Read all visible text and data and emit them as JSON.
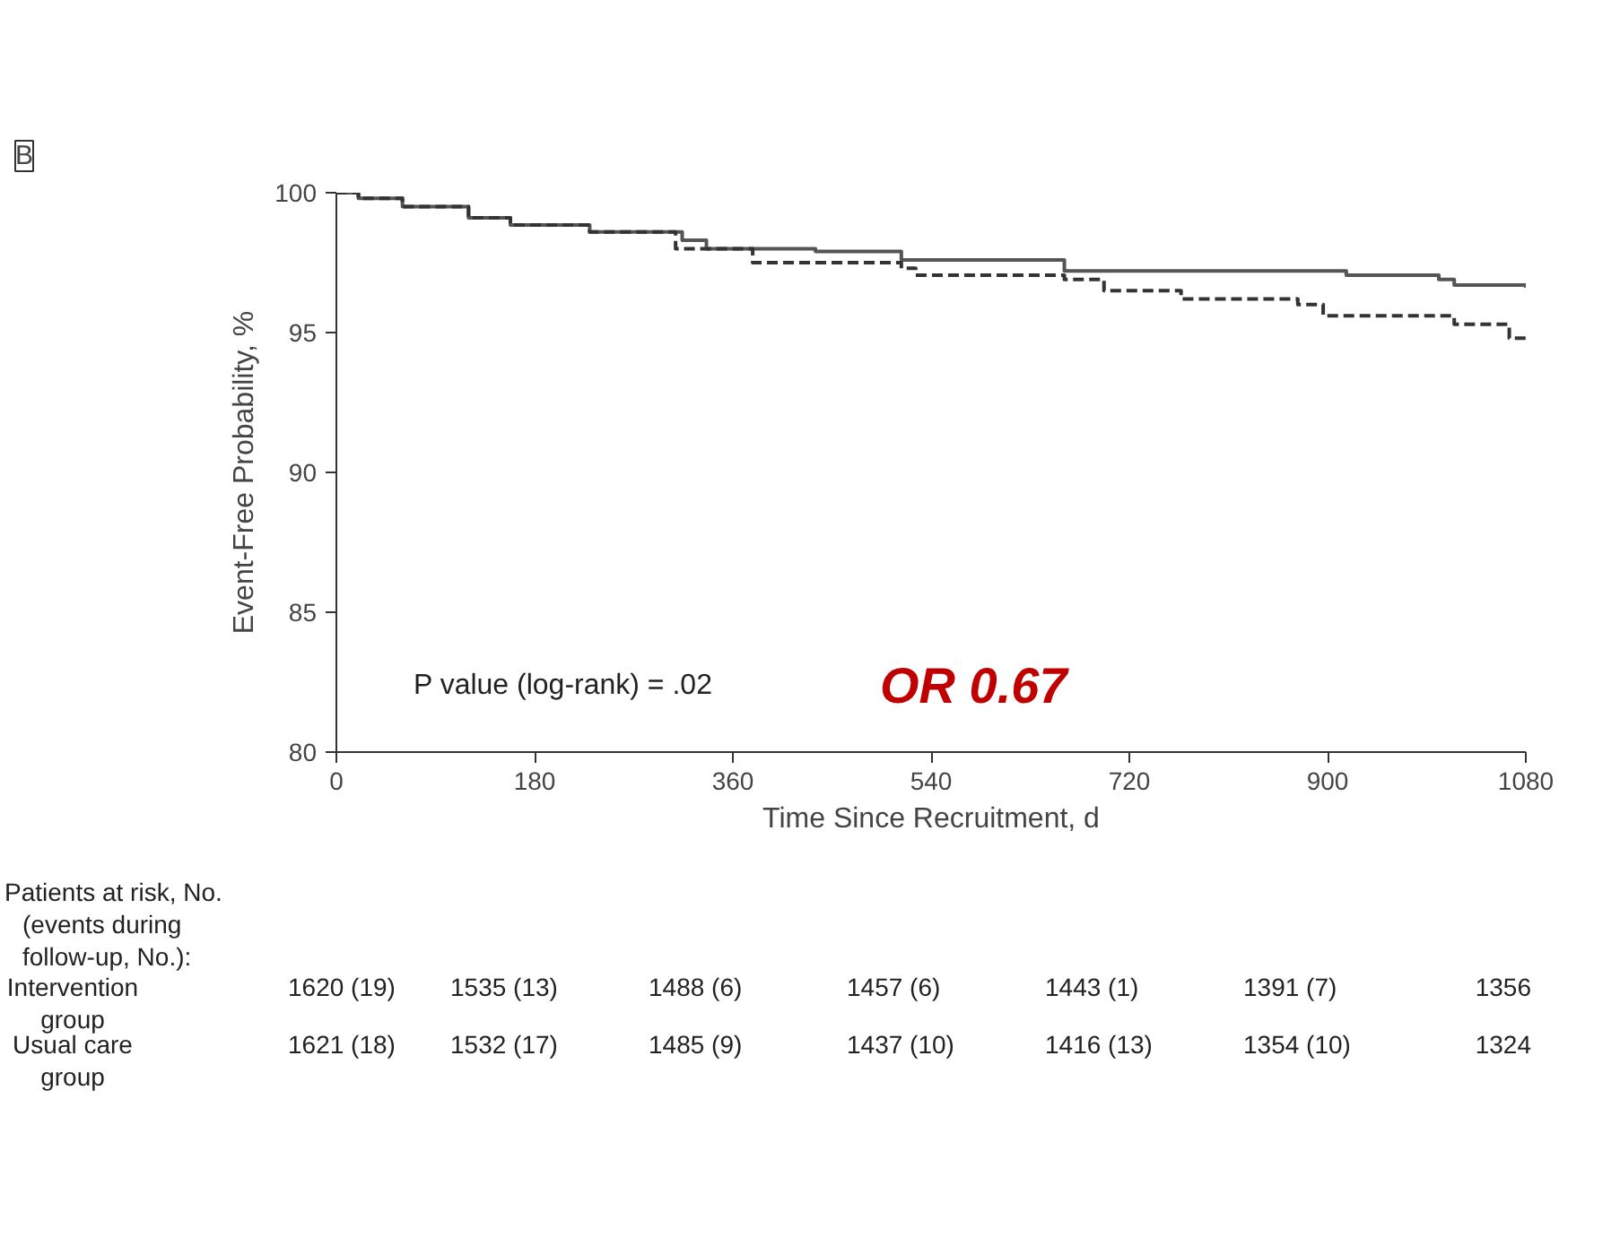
{
  "chart_data": {
    "type": "step",
    "title": "B",
    "xlabel": "Time Since Recruitment, d",
    "ylabel": "Event-Free Probability, %",
    "xlim": [
      0,
      1080
    ],
    "xticks": [
      0,
      180,
      360,
      540,
      720,
      900,
      1080
    ],
    "ylim": [
      80,
      100
    ],
    "yticks": [
      80,
      85,
      90,
      95,
      100
    ],
    "grid": false,
    "series": [
      {
        "color": "#555555",
        "line_style": "solid",
        "x": [
          0,
          20,
          60,
          120,
          158,
          230,
          314,
          336,
          435,
          513,
          661,
          917,
          1001,
          1015,
          1080
        ],
        "values": [
          100,
          99.8,
          99.5,
          99.1,
          98.85,
          98.6,
          98.3,
          98.0,
          97.9,
          97.6,
          97.2,
          97.05,
          96.9,
          96.7,
          96.6
        ]
      },
      {
        "color": "#333333",
        "line_style": "dashed",
        "x": [
          0,
          20,
          60,
          120,
          158,
          230,
          308,
          378,
          513,
          526,
          661,
          697,
          767,
          873,
          896,
          1015,
          1065,
          1080
        ],
        "values": [
          100,
          99.8,
          99.5,
          99.1,
          98.85,
          98.6,
          98.0,
          97.5,
          97.3,
          97.05,
          96.9,
          96.5,
          96.2,
          96.0,
          95.6,
          95.3,
          94.8,
          94.8
        ]
      }
    ],
    "annotations": [
      "P value (log-rank) = .02",
      "OR 0.67",
      "Patients at risk, No.",
      "(events during",
      "follow-up, No.):",
      "Intervention group",
      "1620 (19)",
      "1535 (13)",
      "1488 (6)",
      "1457 (6)",
      "1443 (1)",
      "1391 (7)",
      "1356",
      "Usual care group",
      "1621 (18)",
      "1532 (17)",
      "1485 (9)",
      "1437 (10)",
      "1416 (13)",
      "1354 (10)",
      "1324"
    ]
  }
}
